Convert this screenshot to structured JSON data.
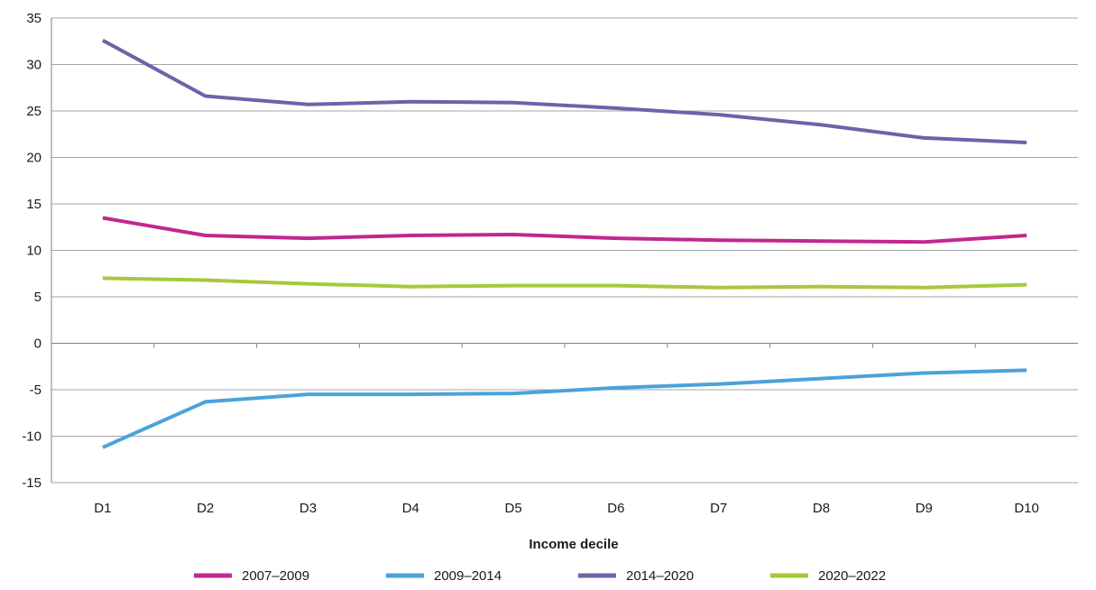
{
  "chart_data": {
    "type": "line",
    "title": "",
    "xlabel": "Income decile",
    "ylabel": "",
    "categories": [
      "D1",
      "D2",
      "D3",
      "D4",
      "D5",
      "D6",
      "D7",
      "D8",
      "D9",
      "D10"
    ],
    "ylim": [
      -15,
      35
    ],
    "yticks": [
      35,
      30,
      25,
      20,
      15,
      10,
      5,
      0,
      -5,
      -10,
      -15
    ],
    "grid": true,
    "legend_position": "bottom",
    "series": [
      {
        "name": "2007–2009",
        "color": "#c2278f",
        "values": [
          13.5,
          11.6,
          11.3,
          11.6,
          11.7,
          11.3,
          11.1,
          11.0,
          10.9,
          11.6
        ]
      },
      {
        "name": "2009–2014",
        "color": "#4aa3d8",
        "values": [
          -11.2,
          -6.3,
          -5.5,
          -5.5,
          -5.4,
          -4.8,
          -4.4,
          -3.8,
          -3.2,
          -2.9
        ]
      },
      {
        "name": "2014–2020",
        "color": "#6e63a8",
        "values": [
          32.6,
          26.6,
          25.7,
          26.0,
          25.9,
          25.3,
          24.6,
          23.5,
          22.1,
          21.6
        ]
      },
      {
        "name": "2020–2022",
        "color": "#a6c93a",
        "values": [
          7.0,
          6.8,
          6.4,
          6.1,
          6.2,
          6.2,
          6.0,
          6.1,
          6.0,
          6.3
        ]
      }
    ]
  }
}
